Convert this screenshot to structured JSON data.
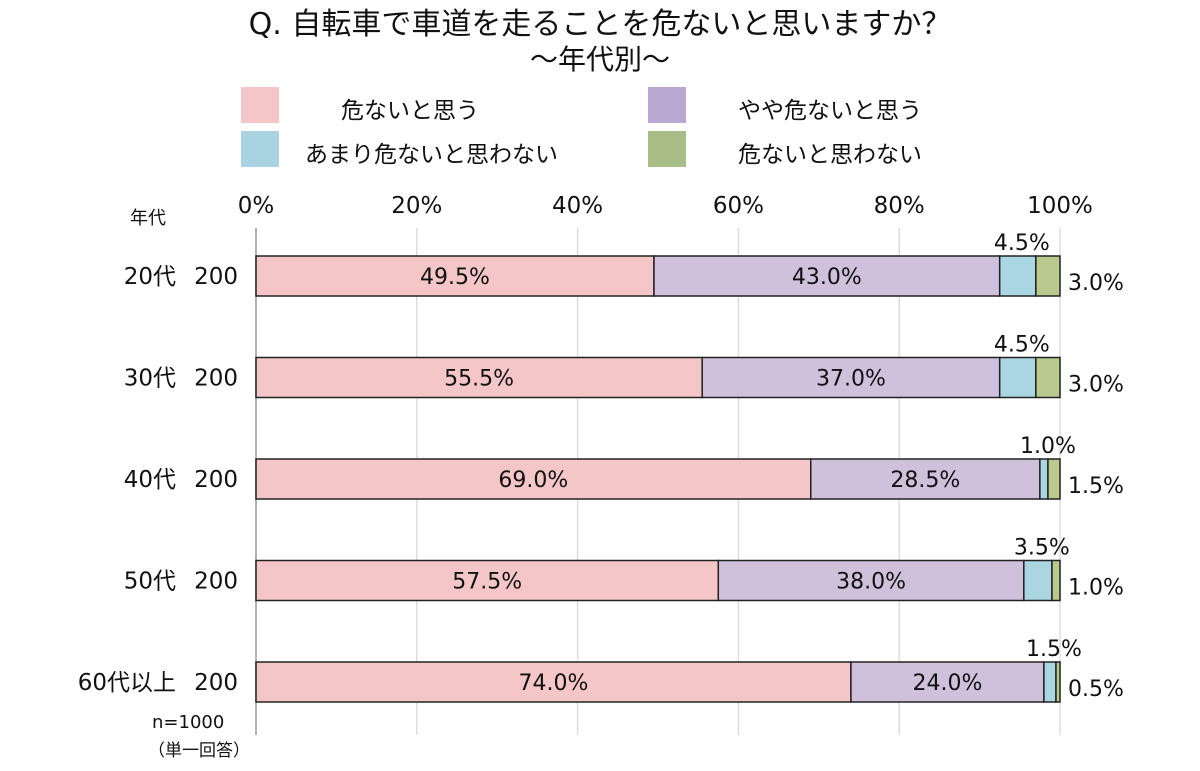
{
  "chart_data": {
    "type": "bar",
    "orientation": "horizontal-stacked-100",
    "title": "Q. 自転車で車道を走ることを危ないと思いますか？",
    "subtitle": "～年代別～",
    "row_header": "年代",
    "note": "n=1000",
    "note2": "（単一回答）",
    "x_ticks": [
      "0%",
      "20%",
      "40%",
      "60%",
      "80%",
      "100%"
    ],
    "xlim": [
      0,
      100
    ],
    "grid": true,
    "legend_position": "top",
    "categories": [
      "20代",
      "30代",
      "40代",
      "50代",
      "60代以上"
    ],
    "n": [
      "200",
      "200",
      "200",
      "200",
      "200"
    ],
    "series": [
      {
        "name": "危ないと思う",
        "color": "#f5c6c8",
        "values": [
          49.5,
          55.5,
          69.0,
          57.5,
          74.0
        ]
      },
      {
        "name": "やや危ないと思う",
        "color": "#cfc0dc",
        "values": [
          43.0,
          37.0,
          28.5,
          38.0,
          24.0
        ]
      },
      {
        "name": "あまり危ないと思わない",
        "color": "#aad6e2",
        "values": [
          4.5,
          4.5,
          1.0,
          3.5,
          1.5
        ]
      },
      {
        "name": "危ないと思わない",
        "color": "#b8c98e",
        "values": [
          3.0,
          3.0,
          1.5,
          1.0,
          0.5
        ]
      }
    ],
    "legend_colors": [
      "#f5c6c8",
      "#bba8d2",
      "#a9d3e1",
      "#a9bd86"
    ]
  }
}
